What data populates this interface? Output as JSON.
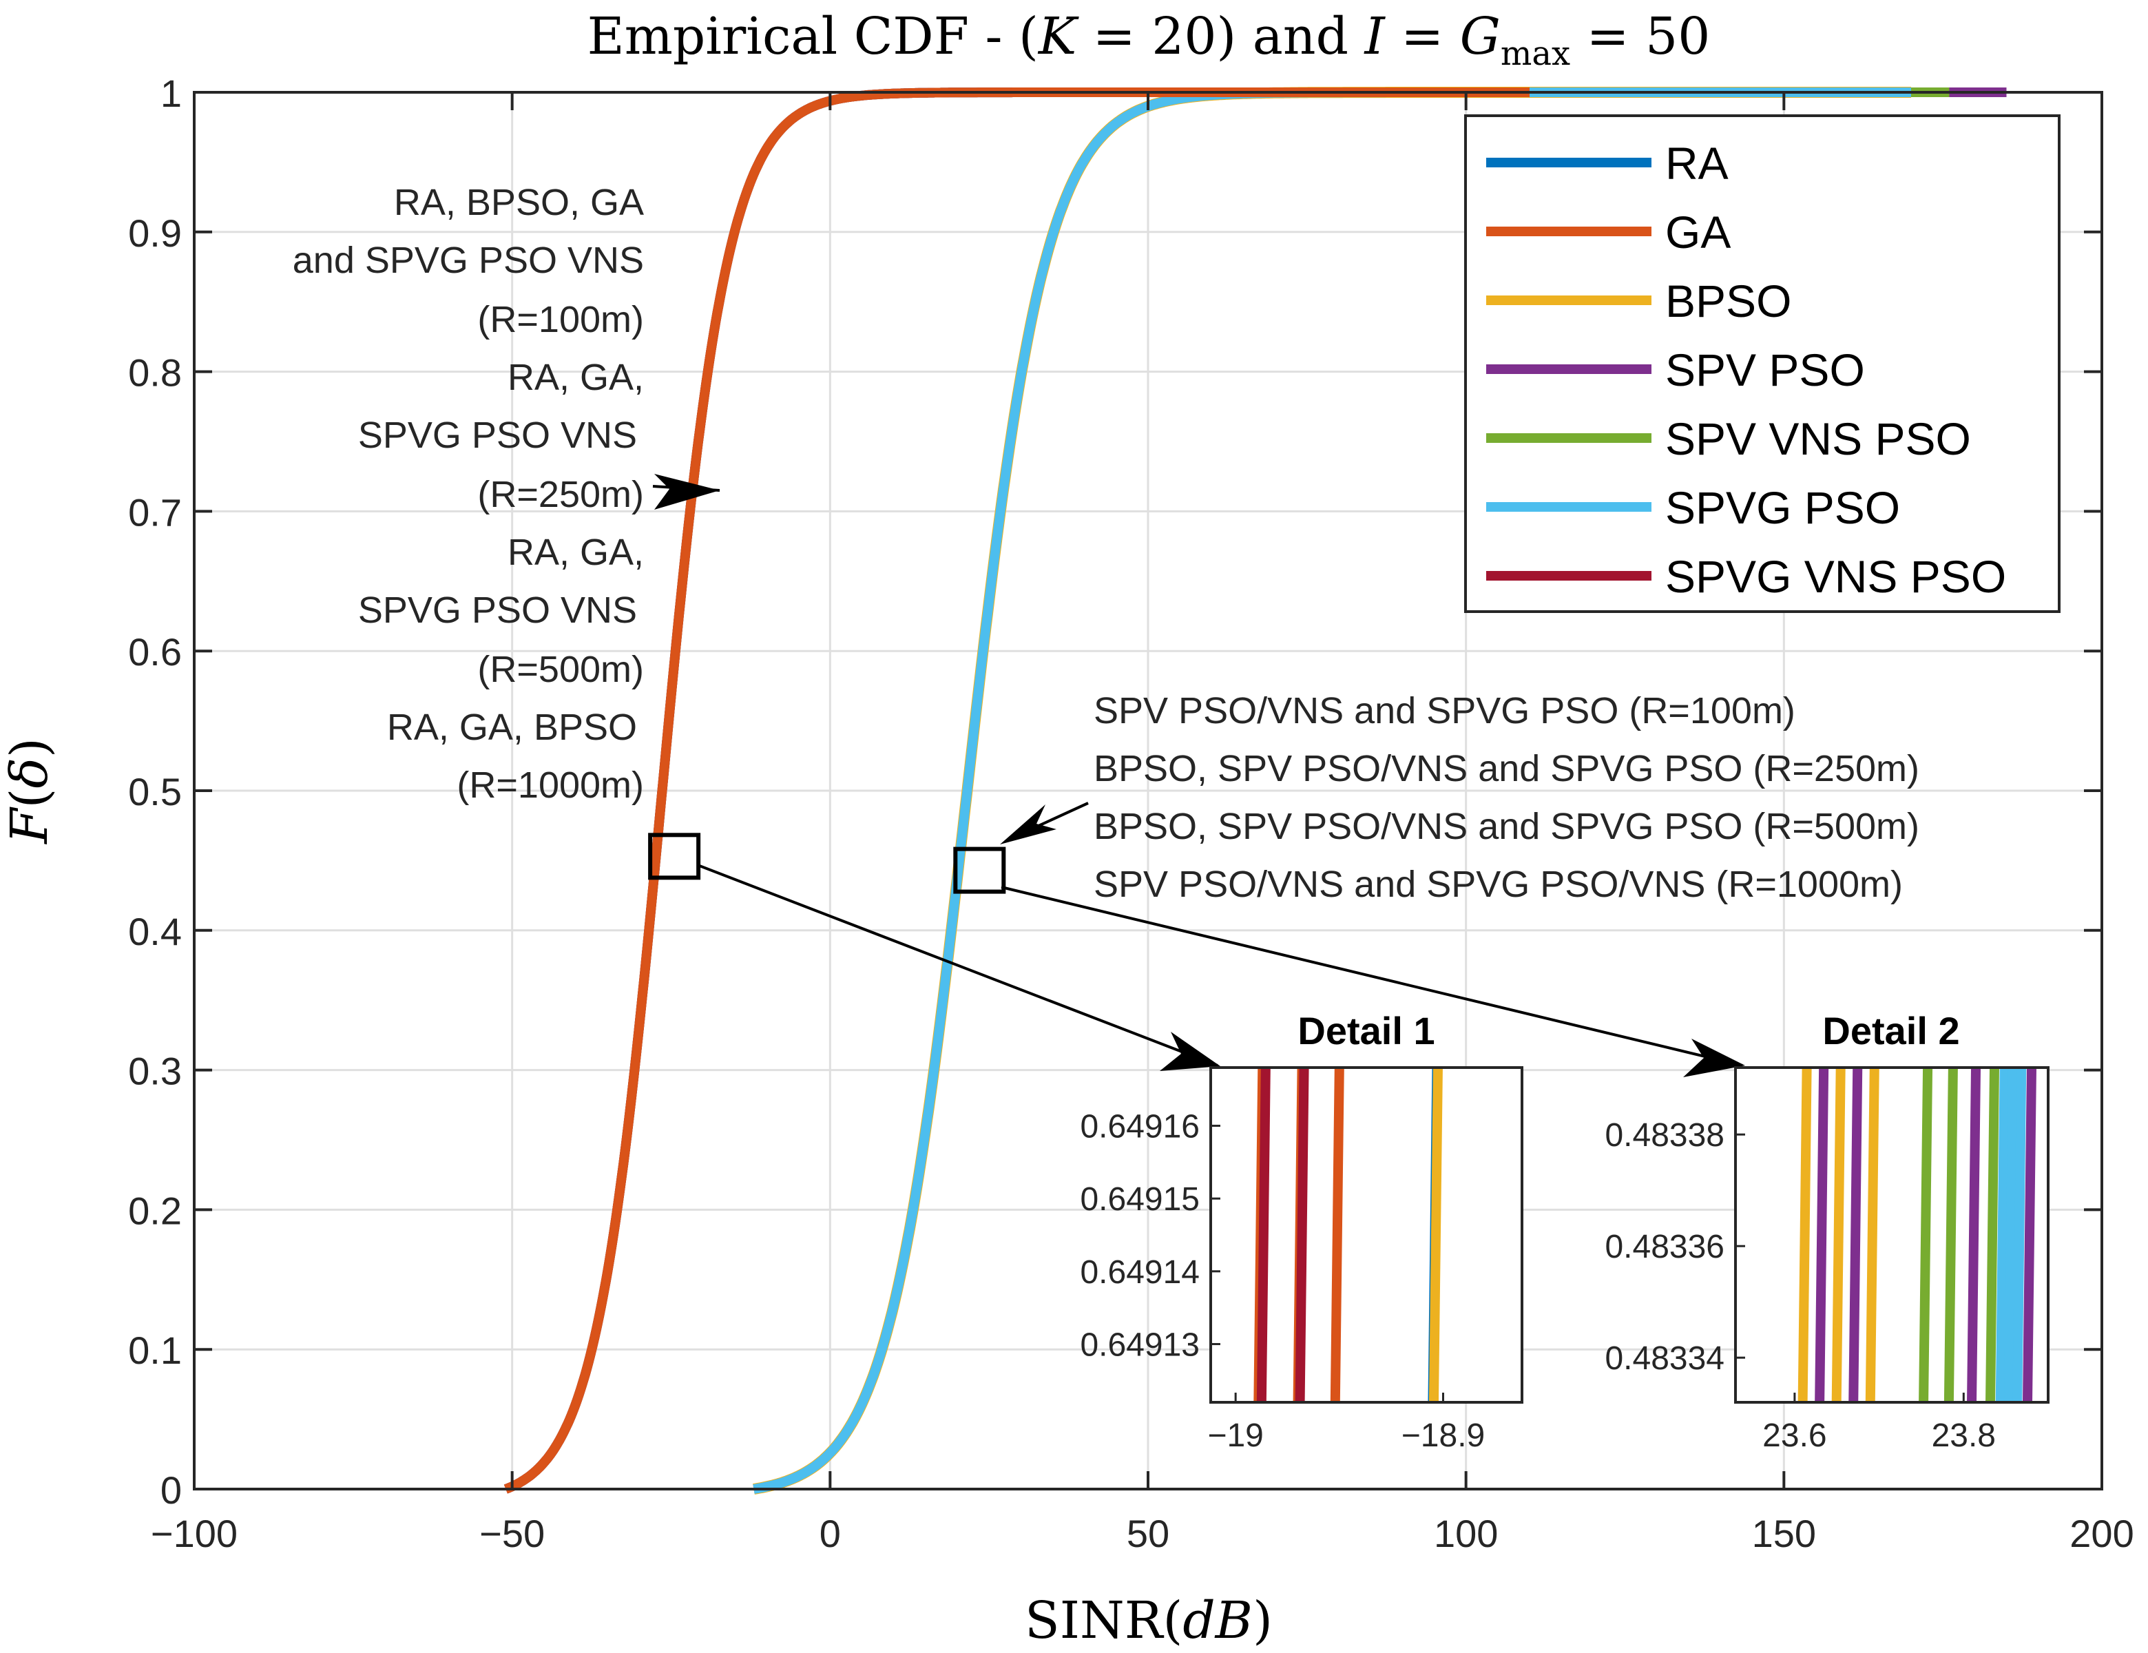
{
  "chart_data": {
    "type": "line",
    "title_parts": [
      "Empirical CDF - (",
      "K",
      " = 20) and ",
      "I",
      " = ",
      "G",
      "max",
      " = 50"
    ],
    "xlabel_parts": [
      "SINR(",
      "dB",
      ")"
    ],
    "ylabel_parts": [
      "F",
      "(",
      "δ",
      ")"
    ],
    "xlim": [
      -100,
      200
    ],
    "ylim": [
      0,
      1
    ],
    "xticks": [
      -100,
      -50,
      0,
      50,
      100,
      150,
      200
    ],
    "xtick_labels": [
      "−100",
      "−50",
      "0",
      "50",
      "100",
      "150",
      "200"
    ],
    "yticks": [
      0,
      0.1,
      0.2,
      0.3,
      0.4,
      0.5,
      0.6,
      0.7,
      0.8,
      0.9,
      1
    ],
    "ytick_labels": [
      "0",
      "0.1",
      "0.2",
      "0.3",
      "0.4",
      "0.5",
      "0.6",
      "0.7",
      "0.8",
      "0.9",
      "1"
    ],
    "grid": true,
    "legend_position": "top-right",
    "series": [
      {
        "name": "RA",
        "color": "#0072BD",
        "group": "low"
      },
      {
        "name": "GA",
        "color": "#D95319",
        "group": "low"
      },
      {
        "name": "BPSO",
        "color": "#EDB120",
        "group": "high"
      },
      {
        "name": "SPV PSO",
        "color": "#7E2F8E",
        "group": "high",
        "tail_end": 185
      },
      {
        "name": "SPV VNS PSO",
        "color": "#77AC30",
        "group": "high",
        "tail_end": 176
      },
      {
        "name": "SPVG PSO",
        "color": "#4DBEEE",
        "group": "high",
        "tail_end": 170
      },
      {
        "name": "SPVG VNS PSO",
        "color": "#A2142F",
        "group": "low"
      }
    ],
    "curves": {
      "low": {
        "start": -51,
        "median": -26.5,
        "scale": 5.2,
        "end": 110
      },
      "high": {
        "start": -12,
        "median": 21.5,
        "scale": 6.2,
        "end": 170
      }
    },
    "markers": [
      {
        "x": -24.5,
        "y": 0.453
      },
      {
        "x": 23.5,
        "y": 0.443
      }
    ],
    "annotations": {
      "left": [
        "RA, BPSO, GA",
        "and SPVG PSO VNS",
        "(R=100m)",
        "RA, GA,",
        "SPVG PSO VNS",
        "(R=250m)",
        "RA, GA,",
        "SPVG PSO VNS",
        "(R=500m)",
        "RA, GA, BPSO",
        "(R=1000m)"
      ],
      "right": [
        "SPV PSO/VNS and SPVG PSO (R=100m)",
        "BPSO, SPV PSO/VNS and SPVG PSO (R=250m)",
        "BPSO, SPV PSO/VNS and SPVG PSO (R=500m)",
        "SPV PSO/VNS and SPVG PSO/VNS (R=1000m)"
      ]
    },
    "details": [
      {
        "title": "Detail 1",
        "xlim": [
          -19.012,
          -18.862
        ],
        "ylim": [
          0.649122,
          0.649168
        ],
        "xticks": [
          -19,
          -18.9
        ],
        "xtick_labels": [
          "−19",
          "−18.9"
        ],
        "yticks": [
          0.64913,
          0.64914,
          0.64915,
          0.64916
        ],
        "ytick_labels": [
          "0.64913",
          "0.64914",
          "0.64915",
          "0.64916"
        ],
        "lines": [
          {
            "x": -18.988,
            "color": "#D95319"
          },
          {
            "x": -18.9865,
            "color": "#A2142F"
          },
          {
            "x": -18.969,
            "color": "#D95319"
          },
          {
            "x": -18.968,
            "color": "#A2142F"
          },
          {
            "x": -18.951,
            "color": "#D95319"
          },
          {
            "x": -18.904,
            "color": "#0072BD"
          },
          {
            "x": -18.9035,
            "color": "#EDB120"
          }
        ]
      },
      {
        "title": "Detail 2",
        "xlim": [
          23.53,
          23.9
        ],
        "ylim": [
          0.483332,
          0.483392
        ],
        "xticks": [
          23.6,
          23.8
        ],
        "xtick_labels": [
          "23.6",
          "23.8"
        ],
        "yticks": [
          0.48334,
          0.48336,
          0.48338
        ],
        "ytick_labels": [
          "0.48334",
          "0.48336",
          "0.48338"
        ],
        "lines": [
          {
            "x": 23.612,
            "color": "#EDB120"
          },
          {
            "x": 23.632,
            "color": "#7E2F8E"
          },
          {
            "x": 23.652,
            "color": "#EDB120"
          },
          {
            "x": 23.672,
            "color": "#7E2F8E"
          },
          {
            "x": 23.692,
            "color": "#EDB120"
          },
          {
            "x": 23.755,
            "color": "#77AC30"
          },
          {
            "x": 23.785,
            "color": "#77AC30"
          },
          {
            "x": 23.812,
            "color": "#7E2F8E"
          },
          {
            "x": 23.834,
            "color": "#77AC30"
          },
          {
            "x": 23.846,
            "color": "#4DBEEE"
          },
          {
            "x": 23.856,
            "color": "#4DBEEE"
          },
          {
            "x": 23.866,
            "color": "#4DBEEE"
          },
          {
            "x": 23.878,
            "color": "#7E2F8E"
          }
        ]
      }
    ]
  }
}
